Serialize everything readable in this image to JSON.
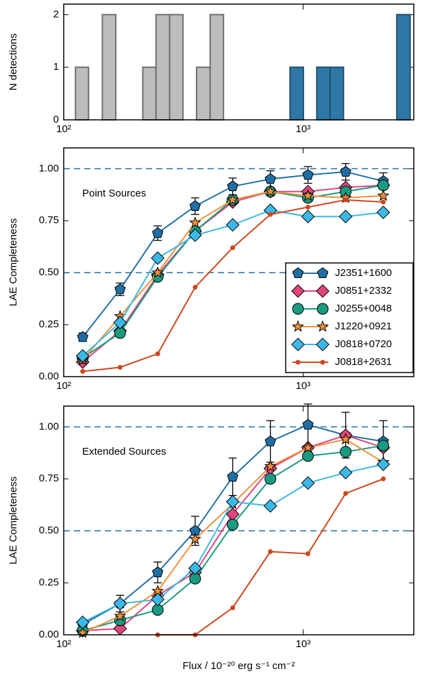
{
  "chart_data": [
    {
      "type": "histogram",
      "ylabel": "N detections",
      "log_x": true,
      "xlim": [
        100,
        2900
      ],
      "xticks": [
        {
          "value": 100,
          "label": "10²"
        },
        {
          "value": 1000,
          "label": "10³"
        }
      ],
      "ylim": [
        0,
        2.2
      ],
      "yticks": [
        0,
        1,
        2
      ],
      "series": [
        {
          "color": "#bdbdbd",
          "edgecolor": "#6e6e6e",
          "bins": [
            112,
            127,
            145,
            165,
            188,
            214,
            243,
            277,
            315,
            359,
            409,
            465
          ],
          "values": [
            1,
            0,
            2,
            0,
            0,
            1,
            2,
            2,
            0,
            1,
            2
          ]
        },
        {
          "color": "#2f78a6",
          "edgecolor": "#1d4f70",
          "bins": [
            882,
            1003,
            1141,
            1297,
            1475,
            1677,
            1905,
            2166,
            2463,
            2800
          ],
          "values": [
            1,
            0,
            1,
            1,
            0,
            0,
            0,
            0,
            2
          ]
        }
      ]
    },
    {
      "type": "line",
      "ylabel": "LAE Completeness",
      "annotation": "Point Sources",
      "log_x": true,
      "legend": "lower right",
      "xlim": [
        100,
        2900
      ],
      "xticks": [
        {
          "value": 100,
          "label": "10²"
        },
        {
          "value": 1000,
          "label": "10³"
        }
      ],
      "ylim": [
        0,
        1.1
      ],
      "yticks": [
        {
          "value": 0,
          "label": "0.00"
        },
        {
          "value": 0.25,
          "label": "0.25"
        },
        {
          "value": 0.5,
          "label": "0.50"
        },
        {
          "value": 0.75,
          "label": "0.75"
        },
        {
          "value": 1,
          "label": "1.00"
        }
      ],
      "hlines": [
        0.5,
        1.0
      ],
      "hline_color": "#1f6fa3",
      "x": [
        120,
        172,
        247,
        354,
        508,
        730,
        1048,
        1506,
        2163
      ],
      "series": [
        {
          "name": "J2351+1600",
          "color": "#1f6fa3",
          "marker": "pentagon",
          "values": [
            0.19,
            0.42,
            0.69,
            0.82,
            0.915,
            0.95,
            0.97,
            0.985,
            0.94
          ],
          "errors": [
            0.02,
            0.03,
            0.035,
            0.04,
            0.04,
            0.04,
            0.04,
            0.04,
            0.04
          ]
        },
        {
          "name": "J0851+2332",
          "color": "#e0457b",
          "marker": "diamond",
          "values": [
            0.07,
            0.22,
            0.49,
            0.7,
            0.84,
            0.89,
            0.89,
            0.91,
            0.92
          ]
        },
        {
          "name": "J0255+0048",
          "color": "#1a9a80",
          "marker": "circle",
          "values": [
            0.09,
            0.21,
            0.48,
            0.7,
            0.85,
            0.89,
            0.86,
            0.89,
            0.92
          ]
        },
        {
          "name": "J1220+0921",
          "color": "#f0903a",
          "marker": "star",
          "values": [
            0.08,
            0.29,
            0.5,
            0.74,
            0.85,
            0.89,
            0.87,
            0.86,
            0.87
          ]
        },
        {
          "name": "J0818+0720",
          "color": "#3bb8e8",
          "marker": "diamond",
          "values": [
            0.1,
            0.26,
            0.57,
            0.68,
            0.73,
            0.8,
            0.77,
            0.77,
            0.79
          ]
        },
        {
          "name": "J0818+2631",
          "color": "#d0451b",
          "marker": "dot",
          "values": [
            0.025,
            0.045,
            0.11,
            0.43,
            0.62,
            0.78,
            0.815,
            0.85,
            0.84
          ]
        }
      ]
    },
    {
      "type": "line",
      "ylabel": "LAE Completeness",
      "annotation": "Extended Sources",
      "log_x": true,
      "xlabel": "Flux / 10⁻²⁰ erg s⁻¹ cm⁻²",
      "xlim": [
        100,
        2900
      ],
      "xticks": [
        {
          "value": 100,
          "label": "10²"
        },
        {
          "value": 1000,
          "label": "10³"
        }
      ],
      "ylim": [
        0,
        1.1
      ],
      "yticks": [
        {
          "value": 0,
          "label": "0.00"
        },
        {
          "value": 0.25,
          "label": "0.25"
        },
        {
          "value": 0.5,
          "label": "0.50"
        },
        {
          "value": 0.75,
          "label": "0.75"
        },
        {
          "value": 1,
          "label": "1.00"
        }
      ],
      "hlines": [
        0.5,
        1.0
      ],
      "hline_color": "#1f6fa3",
      "x": [
        120,
        172,
        247,
        354,
        508,
        730,
        1048,
        1506,
        2163
      ],
      "series": [
        {
          "name": "J2351+1600",
          "color": "#1f6fa3",
          "marker": "pentagon",
          "values": [
            0.05,
            0.15,
            0.3,
            0.5,
            0.76,
            0.93,
            1.01,
            0.96,
            0.93
          ],
          "errors": [
            0.02,
            0.04,
            0.05,
            0.07,
            0.09,
            0.1,
            0.1,
            0.11,
            0.1
          ]
        },
        {
          "name": "J0851+2332",
          "color": "#e0457b",
          "marker": "diamond",
          "values": [
            0.02,
            0.03,
            0.19,
            0.3,
            0.58,
            0.8,
            0.9,
            0.96,
            0.9
          ]
        },
        {
          "name": "J0255+0048",
          "color": "#1a9a80",
          "marker": "circle",
          "values": [
            0.02,
            0.07,
            0.12,
            0.27,
            0.53,
            0.75,
            0.86,
            0.88,
            0.91
          ]
        },
        {
          "name": "J1220+0921",
          "color": "#f0903a",
          "marker": "star",
          "values": [
            0.01,
            0.09,
            0.21,
            0.46,
            0.63,
            0.81,
            0.9,
            0.94,
            0.83
          ]
        },
        {
          "name": "J0818+0720",
          "color": "#3bb8e8",
          "marker": "diamond",
          "values": [
            0.06,
            0.15,
            0.17,
            0.32,
            0.64,
            0.62,
            0.73,
            0.78,
            0.82
          ]
        },
        {
          "name": "J0818+2631",
          "color": "#d0451b",
          "marker": "dot",
          "values": [
            null,
            null,
            0.0,
            0.0,
            0.13,
            0.4,
            0.39,
            0.68,
            0.75
          ]
        }
      ]
    }
  ]
}
